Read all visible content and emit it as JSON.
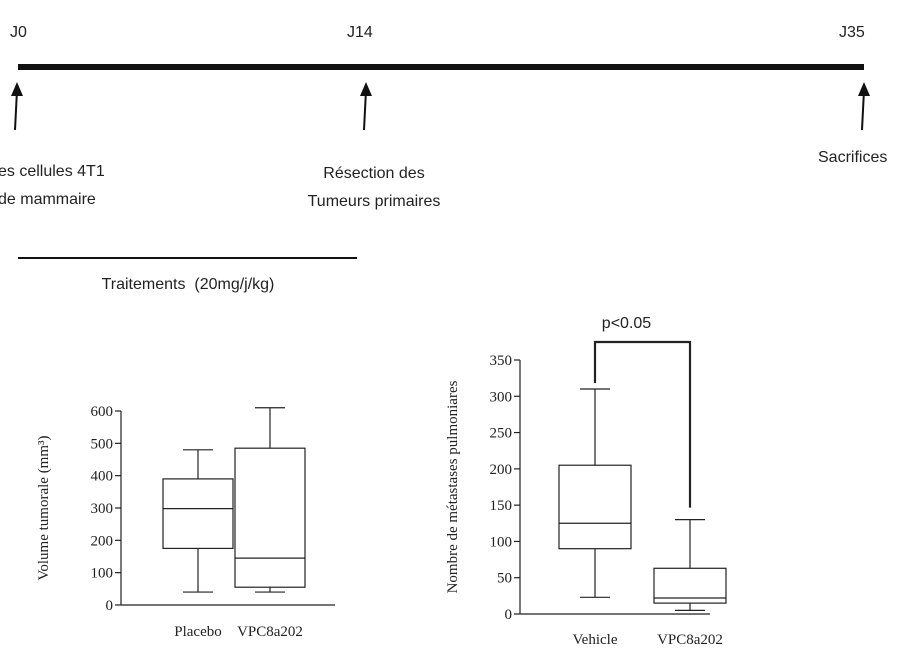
{
  "timeline": {
    "markers": [
      {
        "label": "J0"
      },
      {
        "label": "J14"
      },
      {
        "label": "J35"
      }
    ],
    "events": [
      {
        "line1": "es cellules 4T1",
        "line2": "de mammaire"
      },
      {
        "line1": "Résection des",
        "line2": "Tumeurs primaires"
      },
      {
        "line1": "Sacrifices",
        "line2": ""
      }
    ],
    "treatment_label": "Traitements  (20mg/j/kg)"
  },
  "chart_data": [
    {
      "type": "box",
      "ylabel": "Volume tumorale (mm³)",
      "ylim": [
        0,
        600
      ],
      "yticks": [
        "0",
        "100",
        "200",
        "300",
        "400",
        "500",
        "600"
      ],
      "categories": [
        "Placebo",
        "VPC8a202"
      ],
      "boxes": [
        {
          "category": "Placebo",
          "min": 40,
          "q1": 175,
          "median": 298,
          "q3": 390,
          "max": 480
        },
        {
          "category": "VPC8a202",
          "min": 40,
          "q1": 55,
          "median": 145,
          "q3": 485,
          "max": 610
        }
      ]
    },
    {
      "type": "box",
      "ylabel": "Nombre de métastases pulmoniares",
      "ylim": [
        0,
        350
      ],
      "yticks": [
        "0",
        "50",
        "100",
        "150",
        "200",
        "250",
        "300",
        "350"
      ],
      "categories": [
        "Vehicle",
        "VPC8a202"
      ],
      "boxes": [
        {
          "category": "Vehicle",
          "min": 23,
          "q1": 90,
          "median": 125,
          "q3": 205,
          "max": 310
        },
        {
          "category": "VPC8a202",
          "min": 5,
          "q1": 15,
          "median": 22,
          "q3": 63,
          "max": 130
        }
      ],
      "annotation": "p<0.05"
    }
  ]
}
